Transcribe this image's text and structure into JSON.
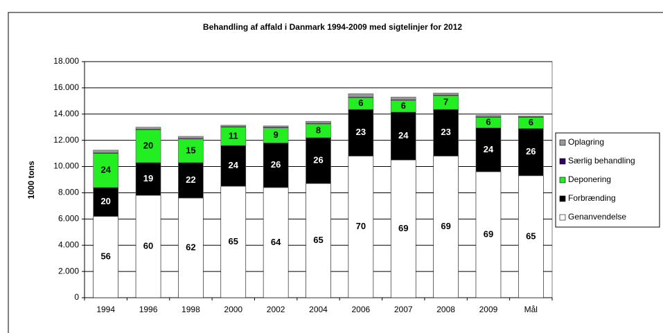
{
  "chart_data": {
    "type": "stacked_bar",
    "title": "Behandling af affald i Danmark 1994-2009 med sigtelinjer for 2012",
    "y_label": "1000 tons",
    "categories": [
      "1994",
      "1996",
      "1998",
      "2000",
      "2002",
      "2004",
      "2006",
      "2007",
      "2008",
      "2009",
      "Mål"
    ],
    "ylim": [
      0,
      18000
    ],
    "yticks": [
      0,
      {
        "value": 2000,
        "label": "2.000"
      },
      {
        "value": 4000,
        "label": "4.000"
      },
      {
        "value": 6000,
        "label": "6.000"
      },
      {
        "value": 8000,
        "label": "8.000"
      },
      {
        "value": 10000,
        "label": "10.000"
      },
      {
        "value": 12000,
        "label": "12.000"
      },
      {
        "value": 14000,
        "label": "14.000"
      },
      {
        "value": 16000,
        "label": "16.000"
      },
      {
        "value": 18000,
        "label": "18.000"
      }
    ],
    "grid": true,
    "legend": "right",
    "series": [
      {
        "name": "Genanvendelse",
        "color": "#ffffff",
        "values": [
          6200,
          7800,
          7600,
          8500,
          8400,
          8700,
          10800,
          10500,
          10800,
          9600,
          9300
        ],
        "shares": [
          56,
          60,
          62,
          65,
          64,
          65,
          70,
          69,
          69,
          69,
          65
        ]
      },
      {
        "name": "Forbrænding",
        "color": "#000000",
        "values": [
          2200,
          2500,
          2700,
          3100,
          3400,
          3500,
          3550,
          3650,
          3550,
          3350,
          3600
        ],
        "shares": [
          20,
          19,
          22,
          24,
          26,
          26,
          23,
          24,
          23,
          24,
          26
        ]
      },
      {
        "name": "Deponering",
        "color": "#22ee22",
        "values": [
          2600,
          2500,
          1800,
          1400,
          1150,
          1050,
          900,
          900,
          1050,
          800,
          850
        ],
        "shares": [
          24,
          20,
          15,
          11,
          9,
          8,
          6,
          6,
          7,
          6,
          6
        ]
      },
      {
        "name": "Særlig behandling",
        "color": "#330066",
        "values": [
          50,
          50,
          50,
          50,
          50,
          50,
          50,
          50,
          50,
          50,
          50
        ]
      },
      {
        "name": "Oplagring",
        "color": "#999999",
        "values": [
          200,
          150,
          150,
          100,
          100,
          150,
          250,
          200,
          150,
          100,
          50
        ]
      }
    ]
  }
}
